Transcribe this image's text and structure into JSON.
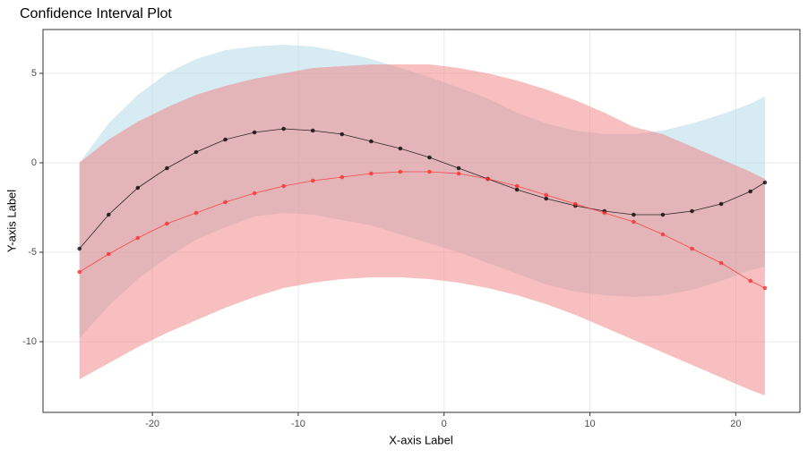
{
  "chart_data": {
    "type": "line",
    "title": "Confidence Interval Plot",
    "x_label": "X-axis Label",
    "y_label": "Y-axis Label",
    "x": [
      -25,
      -23,
      -21,
      -19,
      -17,
      -15,
      -13,
      -11,
      -9,
      -7,
      -5,
      -3,
      -1,
      1,
      3,
      5,
      7,
      9,
      11,
      13,
      15,
      17,
      19,
      21,
      22
    ],
    "series": [
      {
        "color": "#000000",
        "band_color": "#add8e6",
        "values": [
          -4.8,
          -2.9,
          -1.4,
          -0.3,
          0.6,
          1.3,
          1.7,
          1.9,
          1.8,
          1.6,
          1.2,
          0.8,
          0.3,
          -0.3,
          -0.9,
          -1.5,
          -2.0,
          -2.4,
          -2.7,
          -2.9,
          -2.9,
          -2.7,
          -2.3,
          -1.6,
          -1.1
        ],
        "upper": [
          0.0,
          2.2,
          3.8,
          5.0,
          5.8,
          6.3,
          6.5,
          6.6,
          6.5,
          6.2,
          5.8,
          5.3,
          4.8,
          4.2,
          3.6,
          2.8,
          2.2,
          1.8,
          1.6,
          1.6,
          1.8,
          2.2,
          2.7,
          3.3,
          3.7
        ],
        "lower": [
          -9.8,
          -8.0,
          -6.5,
          -5.3,
          -4.3,
          -3.6,
          -3.0,
          -2.8,
          -2.9,
          -3.2,
          -3.5,
          -4.0,
          -4.5,
          -5.0,
          -5.6,
          -6.2,
          -6.8,
          -7.2,
          -7.4,
          -7.5,
          -7.4,
          -7.1,
          -6.6,
          -6.0,
          -5.8
        ]
      },
      {
        "color": "#ff2a2a",
        "band_color": "#f08080",
        "values": [
          -6.1,
          -5.1,
          -4.2,
          -3.4,
          -2.8,
          -2.2,
          -1.7,
          -1.3,
          -1.0,
          -0.8,
          -0.6,
          -0.5,
          -0.5,
          -0.6,
          -0.9,
          -1.3,
          -1.8,
          -2.3,
          -2.8,
          -3.3,
          -4.0,
          -4.8,
          -5.6,
          -6.6,
          -7.0
        ],
        "upper": [
          0.0,
          1.3,
          2.3,
          3.1,
          3.8,
          4.3,
          4.7,
          5.0,
          5.3,
          5.4,
          5.5,
          5.5,
          5.5,
          5.3,
          5.0,
          4.6,
          4.1,
          3.5,
          2.8,
          2.0,
          1.6,
          0.9,
          0.2,
          -0.5,
          -0.9
        ],
        "lower": [
          -12.1,
          -11.2,
          -10.3,
          -9.5,
          -8.8,
          -8.1,
          -7.5,
          -7.0,
          -6.7,
          -6.5,
          -6.4,
          -6.4,
          -6.5,
          -6.7,
          -7.0,
          -7.4,
          -7.9,
          -8.5,
          -9.2,
          -9.9,
          -10.6,
          -11.3,
          -12.0,
          -12.7,
          -13.0
        ]
      }
    ],
    "xlim": [
      -27.5,
      24.4
    ],
    "ylim": [
      -13.95,
      7.45
    ],
    "xticks": [
      -20,
      -10,
      0,
      10,
      20
    ],
    "yticks": [
      -10,
      -5,
      0,
      5
    ],
    "grid": true
  }
}
